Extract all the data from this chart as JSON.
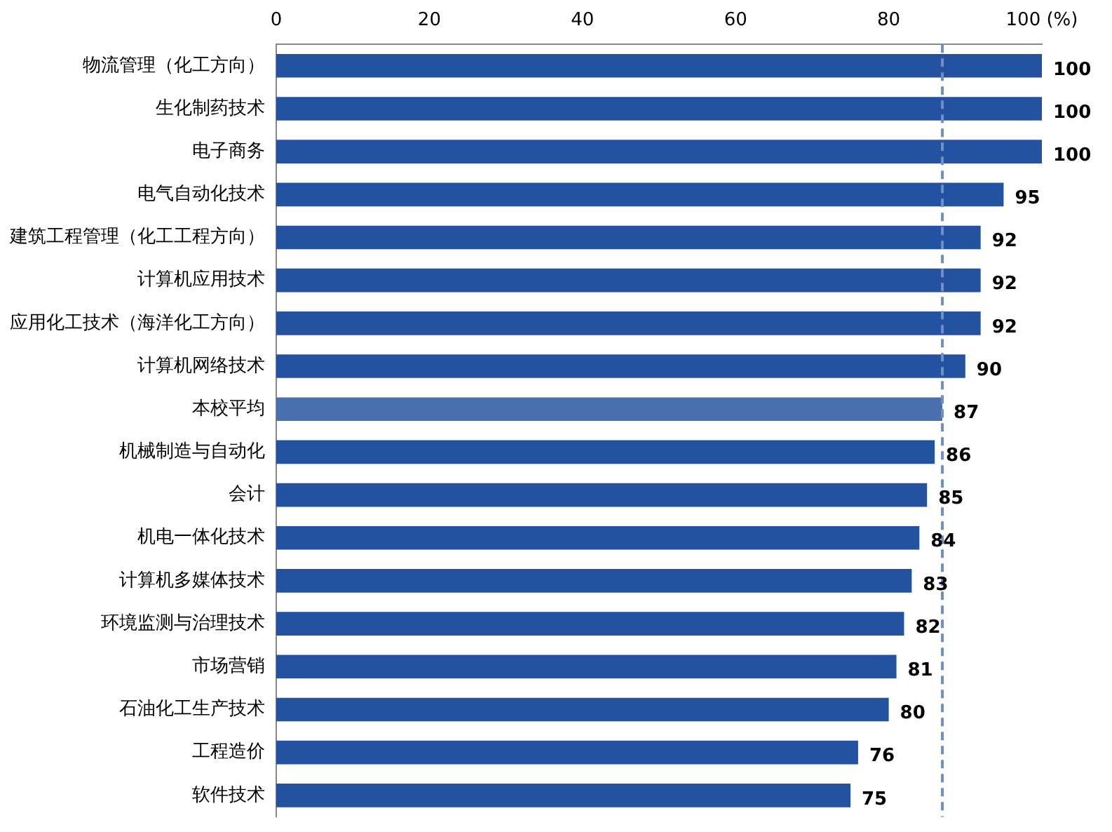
{
  "chart_data": {
    "type": "bar",
    "orientation": "horizontal",
    "categories": [
      "物流管理（化工方向）",
      "生化制药技术",
      "电子商务",
      "电气自动化技术",
      "建筑工程管理（化工工程方向）",
      "计算机应用技术",
      "应用化工技术（海洋化工方向）",
      "计算机网络技术",
      "本校平均",
      "机械制造与自动化",
      "会计",
      "机电一体化技术",
      "计算机多媒体技术",
      "环境监测与治理技术",
      "市场营销",
      "石油化工生产技术",
      "工程造价",
      "软件技术"
    ],
    "values": [
      100,
      100,
      100,
      95,
      92,
      92,
      92,
      90,
      87,
      86,
      85,
      84,
      83,
      82,
      81,
      80,
      76,
      75
    ],
    "colors": [
      "#2352a0",
      "#2352a0",
      "#2352a0",
      "#2352a0",
      "#2352a0",
      "#2352a0",
      "#2352a0",
      "#2352a0",
      "#4a70b0",
      "#2352a0",
      "#2352a0",
      "#2352a0",
      "#2352a0",
      "#2352a0",
      "#2352a0",
      "#2352a0",
      "#2352a0",
      "#2352a0"
    ],
    "xlim": [
      0,
      100
    ],
    "xticks": [
      0,
      20,
      40,
      60,
      80,
      {
        "value": 100,
        "label": "100 (%)"
      }
    ],
    "grid": false,
    "data_labels": true,
    "ref_lines": [
      {
        "axis": "x",
        "value": 87,
        "color": "#6f8fc4",
        "line_style": "dashed"
      }
    ]
  }
}
